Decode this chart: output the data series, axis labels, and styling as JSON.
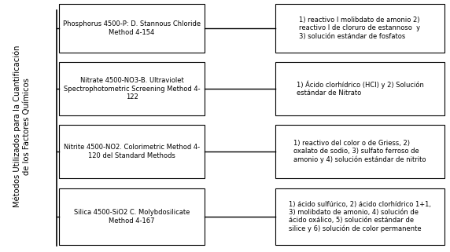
{
  "title_vertical": "Métodos Utilizados para la Cuantificación\nde los Factores Químicos",
  "left_boxes": [
    "Phosphorus 4500-P: D. Stannous Chloride\nMethod 4-154",
    "Nitrate 4500-NO3-B. Ultraviolet\nSpectrophotometric Screening Method 4-\n122",
    "Nitrite 4500-NO2. Colorimetric Method 4-\n120 del Standard Methods",
    "Silica 4500-SiO2 C. Molybdosilicate\nMethod 4-167"
  ],
  "right_boxes": [
    "1) reactivo I molibdato de amonio 2)\nreactivo I de cloruro de estannoso  y\n3) solución estándar de fosfatos",
    "1) Ácido clorhídrico (HCl) y 2) Solución\nestándar de Nitrato",
    "1) reactivo del color o de Griess, 2)\noxalato de sodio, 3) sulfato ferroso de\namonio y 4) solución estándar de nitrito",
    "1) ácido sulfúrico, 2) ácido clorhídrico 1+1,\n3) molibdato de amonio, 4) solución de\nácido oxálico, 5) solución estándar de\nsilice y 6) solución de color permanente"
  ],
  "background_color": "#ffffff",
  "box_facecolor": "#ffffff",
  "box_edgecolor": "#000000",
  "line_color": "#000000",
  "text_color": "#000000",
  "title_color": "#000000",
  "fontsize": 6.0,
  "title_fontsize": 7.2,
  "fig_width": 5.72,
  "fig_height": 3.21,
  "dpi": 100
}
